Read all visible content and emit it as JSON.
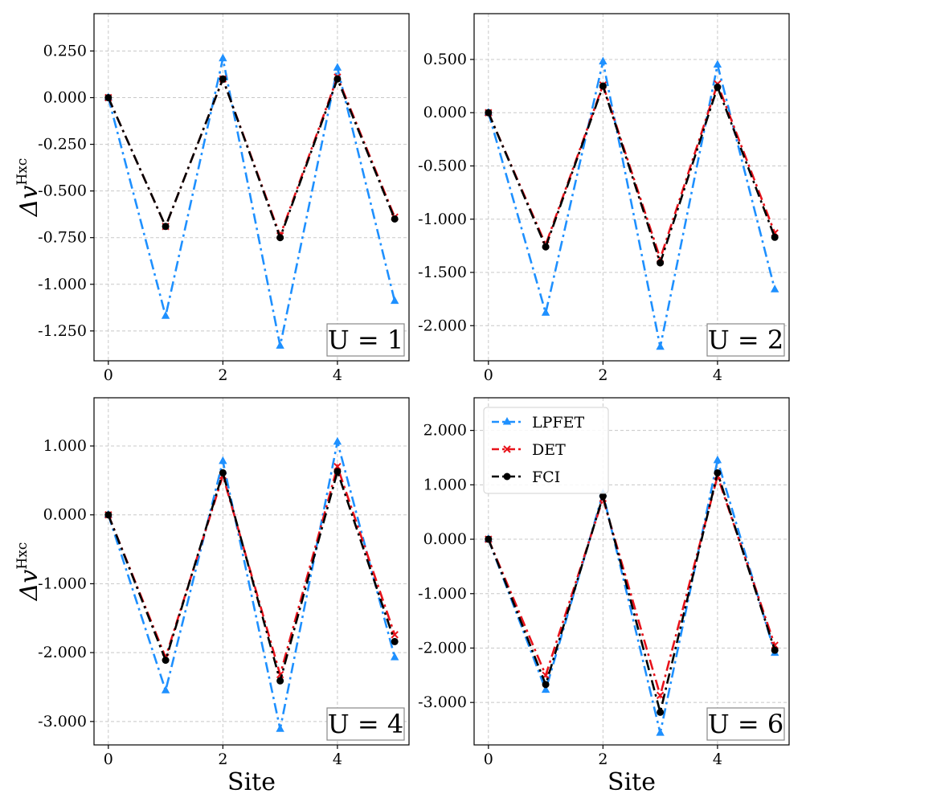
{
  "figure": {
    "xlabel": "Site",
    "ylabel": "Δv",
    "ylabel_sup": "Hxc"
  },
  "legend": {
    "entries": [
      "LPFET",
      "DET",
      "FCI"
    ]
  },
  "styles": {
    "LPFET": {
      "color": "#1e90ff",
      "marker": "triangle"
    },
    "DET": {
      "color": "#e8131b",
      "marker": "x"
    },
    "FCI": {
      "color": "#000000",
      "marker": "circle"
    }
  },
  "chart_data": [
    {
      "type": "line",
      "annotation": "U = 1",
      "x": [
        0,
        1,
        2,
        3,
        4,
        5
      ],
      "xticks": [
        0,
        2,
        4
      ],
      "xlim": [
        -0.25,
        5.25
      ],
      "ylim": [
        -1.41,
        0.45
      ],
      "yticks": [
        0.25,
        0.0,
        -0.25,
        -0.5,
        -0.75,
        -1.0,
        -1.25
      ],
      "ytick_labels": [
        "0.250",
        "0.000",
        "-0.250",
        "-0.500",
        "-0.750",
        "-1.000",
        "-1.250"
      ],
      "grid": true,
      "series": [
        {
          "name": "LPFET",
          "values": [
            0.0,
            -1.17,
            0.21,
            -1.33,
            0.16,
            -1.09
          ]
        },
        {
          "name": "DET",
          "values": [
            0.0,
            -0.69,
            0.1,
            -0.74,
            0.11,
            -0.64
          ]
        },
        {
          "name": "FCI",
          "values": [
            0.0,
            -0.69,
            0.1,
            -0.75,
            0.1,
            -0.65
          ]
        }
      ]
    },
    {
      "type": "line",
      "annotation": "U = 2",
      "x": [
        0,
        1,
        2,
        3,
        4,
        5
      ],
      "xticks": [
        0,
        2,
        4
      ],
      "xlim": [
        -0.25,
        5.25
      ],
      "ylim": [
        -2.33,
        0.93
      ],
      "yticks": [
        0.5,
        0.0,
        -0.5,
        -1.0,
        -1.5,
        -2.0
      ],
      "ytick_labels": [
        "0.500",
        "0.000",
        "-0.500",
        "-1.000",
        "-1.500",
        "-2.000"
      ],
      "grid": true,
      "series": [
        {
          "name": "LPFET",
          "values": [
            0.0,
            -1.88,
            0.48,
            -2.2,
            0.45,
            -1.66
          ]
        },
        {
          "name": "DET",
          "values": [
            0.0,
            -1.24,
            0.26,
            -1.37,
            0.27,
            -1.13
          ]
        },
        {
          "name": "FCI",
          "values": [
            0.0,
            -1.26,
            0.25,
            -1.41,
            0.24,
            -1.17
          ]
        }
      ]
    },
    {
      "type": "line",
      "annotation": "U = 4",
      "x": [
        0,
        1,
        2,
        3,
        4,
        5
      ],
      "xticks": [
        0,
        2,
        4
      ],
      "xlim": [
        -0.25,
        5.25
      ],
      "ylim": [
        -3.34,
        1.7
      ],
      "yticks": [
        1.0,
        0.0,
        -1.0,
        -2.0,
        -3.0
      ],
      "ytick_labels": [
        "1.000",
        "0.000",
        "-1.000",
        "-2.000",
        "-3.000"
      ],
      "grid": true,
      "series": [
        {
          "name": "LPFET",
          "values": [
            0.0,
            -2.55,
            0.78,
            -3.11,
            1.06,
            -2.07
          ]
        },
        {
          "name": "DET",
          "values": [
            0.0,
            -2.07,
            0.57,
            -2.32,
            0.7,
            -1.74
          ]
        },
        {
          "name": "FCI",
          "values": [
            0.0,
            -2.11,
            0.61,
            -2.41,
            0.63,
            -1.84
          ]
        }
      ]
    },
    {
      "type": "line",
      "annotation": "U = 6",
      "x": [
        0,
        1,
        2,
        3,
        4,
        5
      ],
      "xticks": [
        0,
        2,
        4
      ],
      "xlim": [
        -0.25,
        5.25
      ],
      "ylim": [
        -3.78,
        2.6
      ],
      "yticks": [
        2.0,
        1.0,
        0.0,
        -1.0,
        -2.0,
        -3.0
      ],
      "ytick_labels": [
        "2.000",
        "1.000",
        "0.000",
        "-1.000",
        "-2.000",
        "-3.000"
      ],
      "grid": true,
      "legend": "top-left",
      "series": [
        {
          "name": "LPFET",
          "values": [
            0.0,
            -2.77,
            0.84,
            -3.56,
            1.45,
            -2.09
          ]
        },
        {
          "name": "DET",
          "values": [
            0.0,
            -2.5,
            0.75,
            -2.87,
            1.16,
            -1.95
          ]
        },
        {
          "name": "FCI",
          "values": [
            0.0,
            -2.67,
            0.79,
            -3.18,
            1.22,
            -2.04
          ]
        }
      ]
    }
  ]
}
